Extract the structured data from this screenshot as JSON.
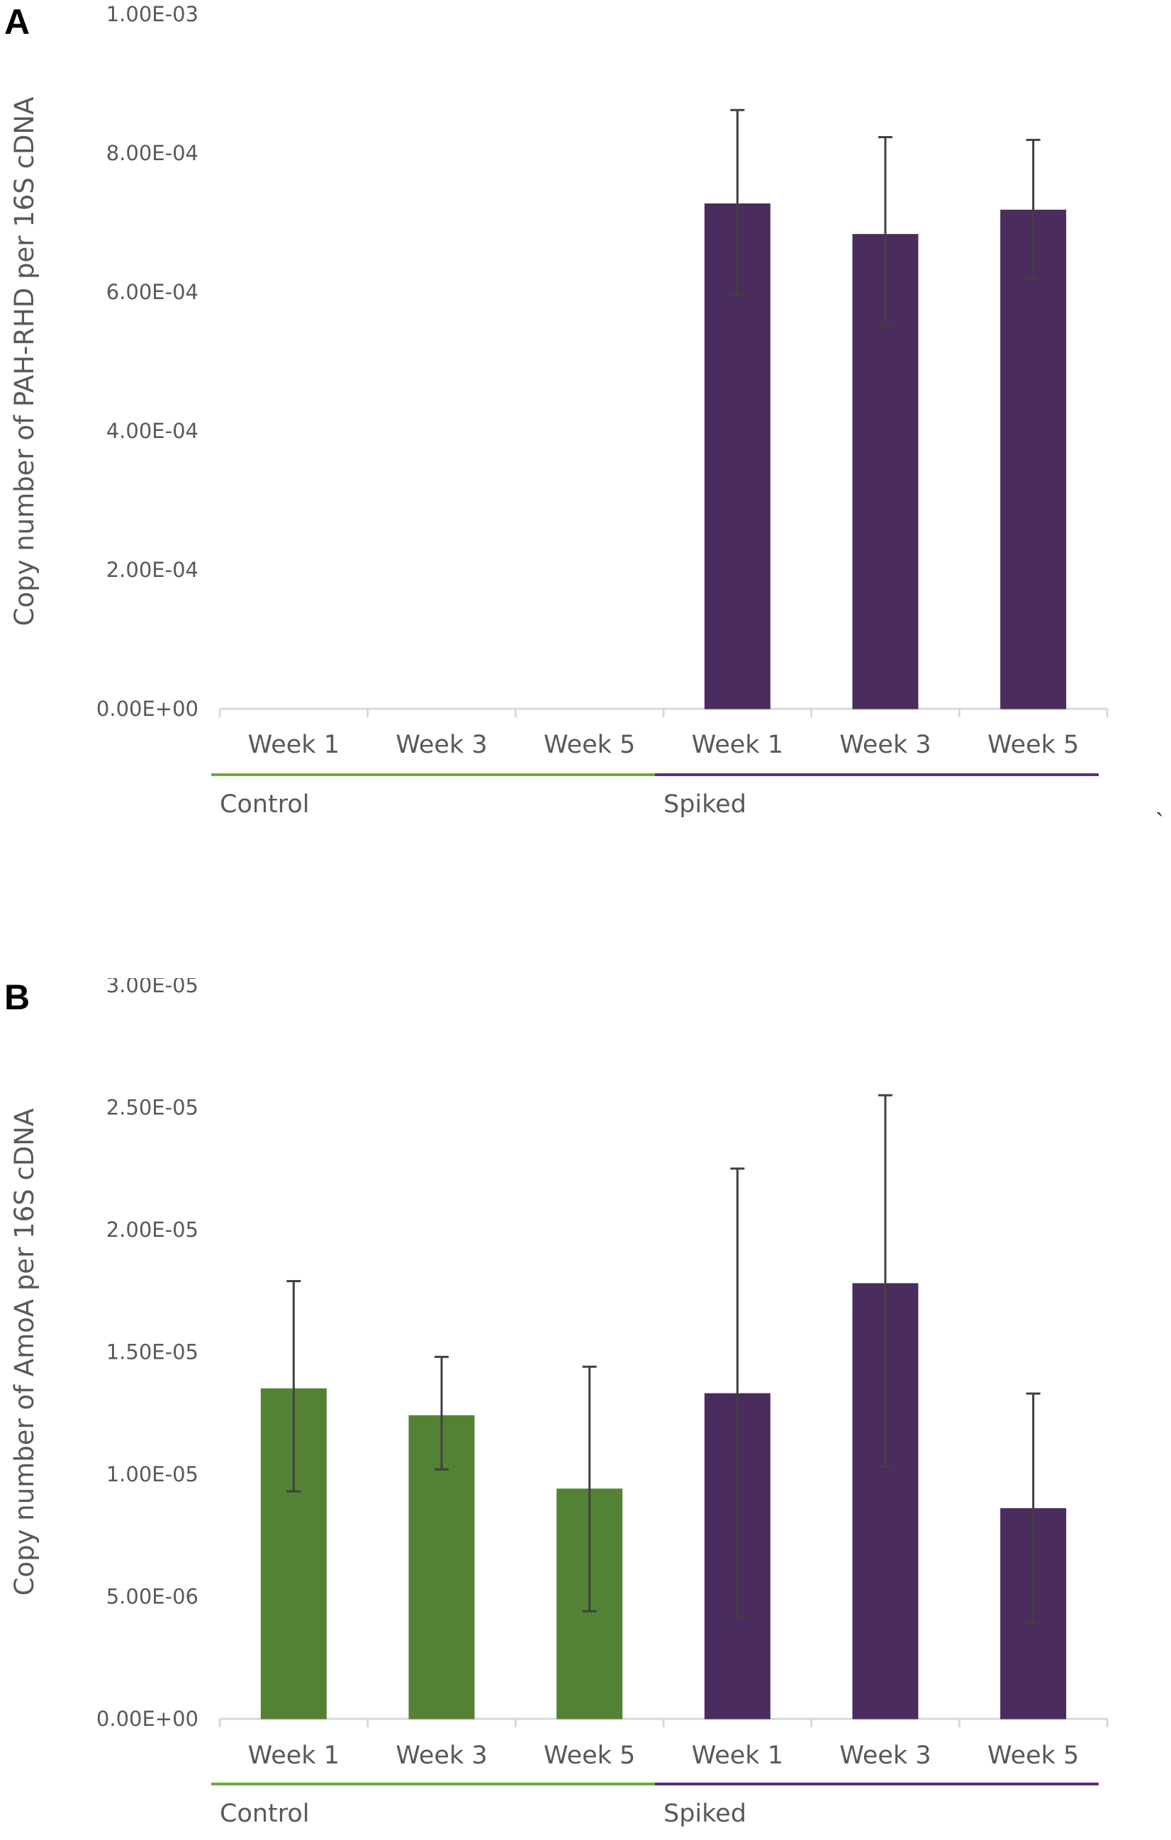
{
  "panels": [
    {
      "letter": "A",
      "chart_data": {
        "type": "bar",
        "title": "",
        "ylabel": "Copy number of PAH-RHD per 16S cDNA",
        "xlabel": "",
        "ylim": [
          0,
          0.001
        ],
        "yticks": [
          0,
          0.0002,
          0.0004,
          0.0006,
          0.0008,
          0.001
        ],
        "ytick_labels": [
          "0.00E+00",
          "2.00E-04",
          "4.00E-04",
          "6.00E-04",
          "8.00E-04",
          "1.00E-03"
        ],
        "groups": [
          {
            "name": "Control",
            "color": "#6aad3a",
            "categories": [
              "Week 1",
              "Week 3",
              "Week 5"
            ],
            "values": [
              0,
              0,
              0
            ],
            "err_low": [
              0,
              0,
              0
            ],
            "err_high": [
              0,
              0,
              0
            ],
            "bar_color": "#548235"
          },
          {
            "name": "Spiked",
            "color": "#5b2c87",
            "categories": [
              "Week 1",
              "Week 3",
              "Week 5"
            ],
            "values": [
              0.000727,
              0.000683,
              0.000718
            ],
            "err_low": [
              0.000595,
              0.000551,
              0.000619
            ],
            "err_high": [
              0.000862,
              0.000823,
              0.000819
            ],
            "bar_color": "#4a2c5e"
          }
        ]
      }
    },
    {
      "letter": "B",
      "chart_data": {
        "type": "bar",
        "title": "",
        "ylabel": "Copy number of AmoA per 16S cDNA",
        "xlabel": "",
        "ylim": [
          0,
          3e-05
        ],
        "yticks": [
          0,
          5e-06,
          1e-05,
          1.5e-05,
          2e-05,
          2.5e-05,
          3e-05
        ],
        "ytick_labels": [
          "0.00E+00",
          "5.00E-06",
          "1.00E-05",
          "1.50E-05",
          "2.00E-05",
          "2.50E-05",
          "3.00E-05"
        ],
        "groups": [
          {
            "name": "Control",
            "color": "#6aad3a",
            "categories": [
              "Week 1",
              "Week 3",
              "Week 5"
            ],
            "values": [
              1.35e-05,
              1.24e-05,
              9.4e-06
            ],
            "err_low": [
              9.3e-06,
              1.02e-05,
              4.4e-06
            ],
            "err_high": [
              1.79e-05,
              1.48e-05,
              1.44e-05
            ],
            "bar_color": "#548235"
          },
          {
            "name": "Spiked",
            "color": "#5b2c87",
            "categories": [
              "Week 1",
              "Week 3",
              "Week 5"
            ],
            "values": [
              1.33e-05,
              1.78e-05,
              8.6e-06
            ],
            "err_low": [
              4.2e-06,
              1.03e-05,
              3.9e-06
            ],
            "err_high": [
              2.25e-05,
              2.55e-05,
              1.33e-05
            ],
            "bar_color": "#4a2c5e"
          }
        ]
      }
    }
  ],
  "stray_mark": "`"
}
